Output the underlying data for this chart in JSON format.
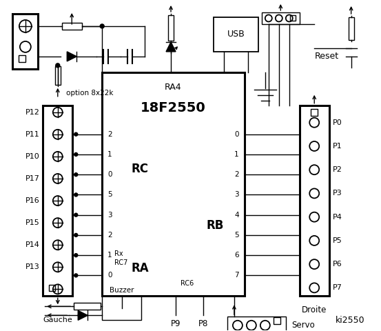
{
  "bg_color": "#ffffff",
  "line_color": "#000000",
  "left_port_labels": [
    "P12",
    "P11",
    "P10",
    "P17",
    "P16",
    "P15",
    "P14",
    "P13"
  ],
  "rc_pins": [
    "2",
    "1",
    "0",
    "5",
    "3",
    "2",
    "1",
    "0"
  ],
  "rb_pins": [
    "0",
    "1",
    "2",
    "3",
    "4",
    "5",
    "6",
    "7"
  ],
  "right_port_labels": [
    "P0",
    "P1",
    "P2",
    "P3",
    "P4",
    "P5",
    "P6",
    "P7"
  ],
  "chip_label": "18F2550",
  "chip_sublabel": "RA4",
  "rc_label": "RC",
  "ra_label": "RA",
  "rb_label": "RB",
  "rc7_label": "Rx\nRC7",
  "rc6_label": "RC6",
  "usb_label": "USB",
  "reset_label": "Reset",
  "option_label": "option 8x22k",
  "gauche_label": "Gauche",
  "droite_label": "Droite",
  "buzzer_label": "Buzzer",
  "servo_label": "Servo",
  "p9_label": "P9",
  "p8_label": "P8",
  "ki_label": "ki2550"
}
